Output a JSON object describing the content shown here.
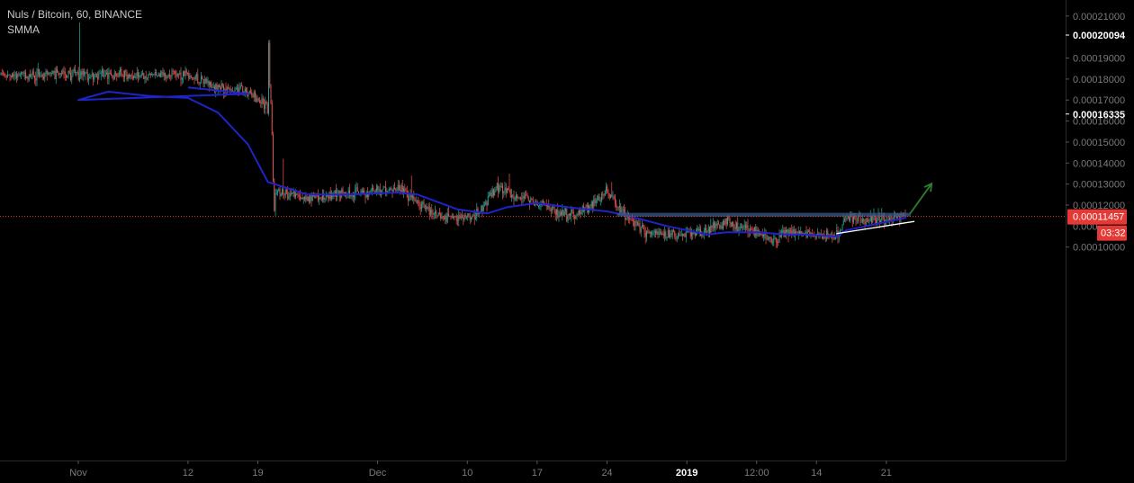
{
  "legend": {
    "symbol_line": "Nuls / Bitcoin, 60, BINANCE",
    "indicator": "SMMA"
  },
  "colors": {
    "background": "#000000",
    "up_candle": "#26a69a",
    "down_candle": "#ef5350",
    "smma_line": "#1f24c9",
    "resistance_band": "#3a5a8c",
    "trendline": "#ffffff",
    "projection_arrow": "#2e7d32",
    "price_line": "#e53935",
    "axis_text": "#7a7a7a"
  },
  "chart_data": {
    "type": "candlestick",
    "symbol": "Nuls / Bitcoin",
    "interval": "60",
    "exchange": "BINANCE",
    "indicator": "SMMA",
    "ylim": [
      9.5e-06,
      0.0002125
    ],
    "y_ticks": [
      "0.00021000",
      "0.00019000",
      "0.00018000",
      "0.00017000",
      "0.00016000",
      "0.00015000",
      "0.00014000",
      "0.00013000",
      "0.00012000",
      "0.00010000"
    ],
    "y_ticks_partial": [
      "0.000"
    ],
    "y_markers": [
      {
        "label": "0.00020094",
        "value": 0.00020094
      },
      {
        "label": "0.00016335",
        "value": 0.00016335
      }
    ],
    "current_price": {
      "label": "0.00011457",
      "value": 0.00011457
    },
    "countdown": "03:32",
    "x_ticks": [
      "Nov",
      "12",
      "19",
      "Dec",
      "10",
      "17",
      "24",
      "2019",
      "12:00",
      "14",
      "21"
    ],
    "x_tick_bold": "2019",
    "series": [
      {
        "kind": "price_keypoints",
        "x": [
          "Oct 22",
          "Oct 25",
          "Oct 28",
          "Oct 30",
          "Nov 1",
          "Nov 1",
          "Nov 2",
          "Nov 4",
          "Nov 8",
          "Nov 11",
          "Nov 13",
          "Nov 14",
          "Nov 15",
          "Nov 16",
          "Nov 17",
          "Nov 18",
          "Nov 19",
          "Nov 19",
          "Nov 20",
          "Nov 21",
          "Nov 22",
          "Nov 25",
          "Nov 27",
          "Nov 30",
          "Dec 3",
          "Dec 5",
          "Dec 7",
          "Dec 9",
          "Dec 11",
          "Dec 13",
          "Dec 14",
          "Dec 16",
          "Dec 18",
          "Dec 20",
          "Dec 22",
          "Dec 24",
          "Dec 25",
          "Dec 26",
          "Dec 28",
          "Dec 30",
          "Jan 1",
          "Jan 3",
          "Jan 5",
          "Jan 8",
          "Jan 10",
          "Jan 11",
          "Jan 13",
          "Jan 14",
          "Jan 16",
          "Jan 17",
          "Jan 19",
          "Jan 21",
          "Jan 23"
        ],
        "values": [
          0.000182,
          0.000176,
          0.000174,
          0.000166,
          0.000168,
          0.000203,
          0.000179,
          0.000177,
          0.000172,
          0.000169,
          0.000167,
          0.000163,
          0.000156,
          0.000148,
          0.00014,
          0.00013,
          0.000112,
          0.000114,
          0.000127,
          0.000127,
          0.000125,
          0.000123,
          0.000126,
          0.000126,
          0.000129,
          0.000121,
          0.000115,
          0.000113,
          0.000116,
          0.000129,
          0.000126,
          0.000123,
          0.000119,
          0.000115,
          0.000118,
          0.000127,
          0.00012,
          0.000113,
          0.000107,
          0.000106,
          0.000106,
          0.000108,
          0.000112,
          0.000107,
          0.000103,
          0.000108,
          0.000107,
          0.000105,
          0.000106,
          0.000114,
          0.000113,
          0.000113,
          0.000115
        ]
      },
      {
        "kind": "smma",
        "name": "SMMA",
        "x": [
          "Oct 22",
          "Oct 28",
          "Nov 1",
          "Nov 4",
          "Nov 8",
          "Nov 12",
          "Nov 15",
          "Nov 18",
          "Nov 20",
          "Nov 24",
          "Nov 28",
          "Dec 3",
          "Dec 5",
          "Dec 9",
          "Dec 12",
          "Dec 14",
          "Dec 17",
          "Dec 20",
          "Dec 24",
          "Dec 26",
          "Dec 30",
          "Jan 3",
          "Jan 5",
          "Jan 8",
          "Jan 11",
          "Jan 13",
          "Jan 16",
          "Jan 17",
          "Jan 21",
          "Jan 23"
        ],
        "values": [
          0.000176,
          0.000173,
          0.00017,
          0.000174,
          0.000172,
          0.000171,
          0.000164,
          0.000149,
          0.000131,
          0.000125,
          0.000125,
          0.000126,
          0.000125,
          0.000118,
          0.000116,
          0.000119,
          0.000121,
          0.000119,
          0.000117,
          0.000115,
          0.00011,
          0.000106,
          0.000107,
          0.000107,
          0.000106,
          0.000106,
          0.000105,
          0.000108,
          0.000112,
          0.000114
        ]
      }
    ],
    "annotations": [
      {
        "kind": "resistance_zone",
        "y_from": 0.0001145,
        "y_to": 0.0001163,
        "x_from": "Dec 25",
        "x_to": "Jan 23"
      },
      {
        "kind": "ascending_trendline",
        "from": {
          "x": "Jan 16",
          "y": 0.0001064
        },
        "to": {
          "x": "Jan 24",
          "y": 0.0001122
        }
      },
      {
        "kind": "projection_arrow",
        "from": {
          "x": "Jan 23",
          "y": 0.0001158
        },
        "to": {
          "x": "Jan 25",
          "y": 0.0001302
        }
      }
    ]
  }
}
